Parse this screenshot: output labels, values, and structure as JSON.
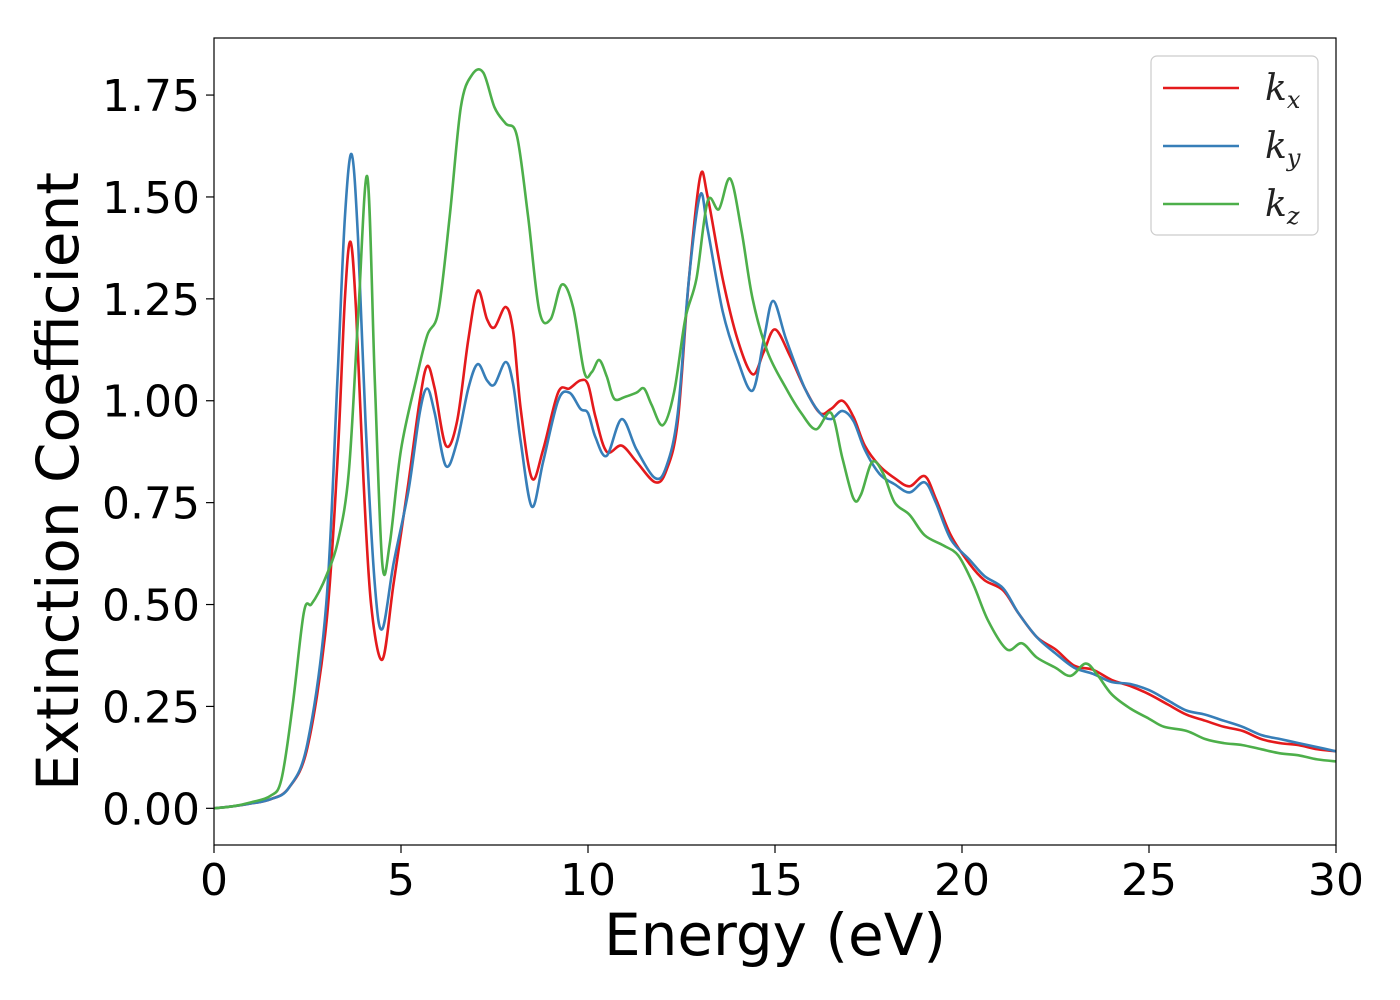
{
  "chart_data": {
    "type": "line",
    "xlabel": "Energy (eV)",
    "ylabel": "Extinction Coefficient",
    "xlim": [
      0,
      30
    ],
    "ylim": [
      -0.09,
      1.89
    ],
    "xticks": [
      0,
      5,
      10,
      15,
      20,
      25,
      30
    ],
    "xtick_labels": [
      "0",
      "5",
      "10",
      "15",
      "20",
      "25",
      "30"
    ],
    "yticks": [
      0.0,
      0.25,
      0.5,
      0.75,
      1.0,
      1.25,
      1.5,
      1.75
    ],
    "ytick_labels": [
      "0.00",
      "0.25",
      "0.50",
      "0.75",
      "1.00",
      "1.25",
      "1.50",
      "1.75"
    ],
    "grid": false,
    "legend_position": "top-right",
    "series": [
      {
        "name": "k_x",
        "legend_base": "k",
        "legend_sub": "x",
        "color": "#e41a1c",
        "points": [
          [
            0,
            0
          ],
          [
            0.5,
            0.005
          ],
          [
            1.0,
            0.012
          ],
          [
            1.5,
            0.022
          ],
          [
            2.0,
            0.05
          ],
          [
            2.5,
            0.15
          ],
          [
            3.0,
            0.45
          ],
          [
            3.3,
            0.85
          ],
          [
            3.5,
            1.25
          ],
          [
            3.65,
            1.39
          ],
          [
            3.8,
            1.22
          ],
          [
            4.0,
            0.8
          ],
          [
            4.2,
            0.5
          ],
          [
            4.5,
            0.365
          ],
          [
            4.8,
            0.55
          ],
          [
            5.2,
            0.8
          ],
          [
            5.5,
            1.0
          ],
          [
            5.7,
            1.085
          ],
          [
            5.9,
            1.03
          ],
          [
            6.2,
            0.89
          ],
          [
            6.5,
            0.95
          ],
          [
            6.8,
            1.15
          ],
          [
            7.05,
            1.27
          ],
          [
            7.3,
            1.2
          ],
          [
            7.5,
            1.18
          ],
          [
            7.8,
            1.23
          ],
          [
            8.0,
            1.17
          ],
          [
            8.2,
            0.98
          ],
          [
            8.5,
            0.81
          ],
          [
            8.8,
            0.88
          ],
          [
            9.2,
            1.02
          ],
          [
            9.5,
            1.03
          ],
          [
            9.8,
            1.05
          ],
          [
            10.0,
            1.04
          ],
          [
            10.2,
            0.96
          ],
          [
            10.5,
            0.875
          ],
          [
            10.9,
            0.89
          ],
          [
            11.3,
            0.85
          ],
          [
            11.8,
            0.8
          ],
          [
            12.1,
            0.83
          ],
          [
            12.4,
            0.95
          ],
          [
            12.7,
            1.3
          ],
          [
            13.0,
            1.55
          ],
          [
            13.2,
            1.5
          ],
          [
            13.6,
            1.3
          ],
          [
            14.0,
            1.15
          ],
          [
            14.4,
            1.065
          ],
          [
            14.7,
            1.12
          ],
          [
            15.0,
            1.175
          ],
          [
            15.4,
            1.11
          ],
          [
            15.8,
            1.03
          ],
          [
            16.2,
            0.97
          ],
          [
            16.5,
            0.98
          ],
          [
            16.8,
            1.0
          ],
          [
            17.1,
            0.96
          ],
          [
            17.4,
            0.89
          ],
          [
            17.8,
            0.84
          ],
          [
            18.2,
            0.81
          ],
          [
            18.6,
            0.79
          ],
          [
            19.0,
            0.815
          ],
          [
            19.3,
            0.76
          ],
          [
            19.7,
            0.67
          ],
          [
            20.2,
            0.6
          ],
          [
            20.6,
            0.56
          ],
          [
            21.1,
            0.535
          ],
          [
            21.5,
            0.48
          ],
          [
            22.0,
            0.42
          ],
          [
            22.5,
            0.39
          ],
          [
            23.0,
            0.35
          ],
          [
            23.5,
            0.34
          ],
          [
            24.0,
            0.315
          ],
          [
            24.5,
            0.3
          ],
          [
            25.0,
            0.28
          ],
          [
            25.5,
            0.255
          ],
          [
            26.0,
            0.23
          ],
          [
            26.5,
            0.215
          ],
          [
            27.0,
            0.2
          ],
          [
            27.5,
            0.19
          ],
          [
            28.0,
            0.17
          ],
          [
            28.5,
            0.16
          ],
          [
            29.0,
            0.155
          ],
          [
            29.5,
            0.145
          ],
          [
            30.0,
            0.14
          ]
        ]
      },
      {
        "name": "k_y",
        "legend_base": "k",
        "legend_sub": "y",
        "color": "#377eb8",
        "points": [
          [
            0,
            0
          ],
          [
            0.5,
            0.005
          ],
          [
            1.0,
            0.012
          ],
          [
            1.5,
            0.022
          ],
          [
            2.0,
            0.05
          ],
          [
            2.5,
            0.16
          ],
          [
            3.0,
            0.5
          ],
          [
            3.3,
            1.05
          ],
          [
            3.5,
            1.45
          ],
          [
            3.68,
            1.605
          ],
          [
            3.85,
            1.4
          ],
          [
            4.05,
            0.95
          ],
          [
            4.3,
            0.55
          ],
          [
            4.5,
            0.44
          ],
          [
            4.8,
            0.6
          ],
          [
            5.2,
            0.78
          ],
          [
            5.5,
            0.97
          ],
          [
            5.7,
            1.03
          ],
          [
            5.9,
            0.97
          ],
          [
            6.2,
            0.84
          ],
          [
            6.5,
            0.9
          ],
          [
            6.8,
            1.03
          ],
          [
            7.05,
            1.09
          ],
          [
            7.3,
            1.05
          ],
          [
            7.5,
            1.04
          ],
          [
            7.8,
            1.095
          ],
          [
            8.0,
            1.04
          ],
          [
            8.2,
            0.9
          ],
          [
            8.5,
            0.74
          ],
          [
            8.8,
            0.85
          ],
          [
            9.2,
            1.0
          ],
          [
            9.5,
            1.02
          ],
          [
            9.8,
            0.98
          ],
          [
            10.0,
            0.97
          ],
          [
            10.2,
            0.91
          ],
          [
            10.5,
            0.865
          ],
          [
            10.9,
            0.955
          ],
          [
            11.3,
            0.88
          ],
          [
            11.8,
            0.81
          ],
          [
            12.1,
            0.84
          ],
          [
            12.4,
            0.97
          ],
          [
            12.7,
            1.3
          ],
          [
            13.0,
            1.505
          ],
          [
            13.2,
            1.42
          ],
          [
            13.6,
            1.22
          ],
          [
            14.0,
            1.1
          ],
          [
            14.4,
            1.025
          ],
          [
            14.7,
            1.15
          ],
          [
            14.95,
            1.245
          ],
          [
            15.3,
            1.15
          ],
          [
            15.8,
            1.03
          ],
          [
            16.2,
            0.97
          ],
          [
            16.5,
            0.955
          ],
          [
            16.8,
            0.975
          ],
          [
            17.1,
            0.95
          ],
          [
            17.4,
            0.88
          ],
          [
            17.8,
            0.82
          ],
          [
            18.2,
            0.795
          ],
          [
            18.6,
            0.775
          ],
          [
            19.0,
            0.8
          ],
          [
            19.3,
            0.75
          ],
          [
            19.7,
            0.66
          ],
          [
            20.2,
            0.61
          ],
          [
            20.6,
            0.57
          ],
          [
            21.1,
            0.54
          ],
          [
            21.5,
            0.48
          ],
          [
            22.0,
            0.42
          ],
          [
            22.5,
            0.38
          ],
          [
            23.0,
            0.345
          ],
          [
            23.5,
            0.33
          ],
          [
            24.0,
            0.31
          ],
          [
            24.5,
            0.305
          ],
          [
            25.0,
            0.29
          ],
          [
            25.5,
            0.265
          ],
          [
            26.0,
            0.24
          ],
          [
            26.5,
            0.23
          ],
          [
            27.0,
            0.215
          ],
          [
            27.5,
            0.2
          ],
          [
            28.0,
            0.18
          ],
          [
            28.5,
            0.17
          ],
          [
            29.0,
            0.16
          ],
          [
            29.5,
            0.15
          ],
          [
            30.0,
            0.14
          ]
        ]
      },
      {
        "name": "k_z",
        "legend_base": "k",
        "legend_sub": "z",
        "color": "#4daf4a",
        "points": [
          [
            0,
            0
          ],
          [
            0.5,
            0.005
          ],
          [
            1.0,
            0.015
          ],
          [
            1.5,
            0.03
          ],
          [
            1.8,
            0.07
          ],
          [
            2.1,
            0.25
          ],
          [
            2.4,
            0.48
          ],
          [
            2.6,
            0.5
          ],
          [
            2.8,
            0.53
          ],
          [
            3.0,
            0.57
          ],
          [
            3.3,
            0.65
          ],
          [
            3.6,
            0.82
          ],
          [
            3.85,
            1.2
          ],
          [
            4.1,
            1.55
          ],
          [
            4.3,
            1.05
          ],
          [
            4.5,
            0.6
          ],
          [
            4.7,
            0.65
          ],
          [
            5.0,
            0.88
          ],
          [
            5.4,
            1.05
          ],
          [
            5.7,
            1.16
          ],
          [
            6.0,
            1.22
          ],
          [
            6.3,
            1.45
          ],
          [
            6.6,
            1.72
          ],
          [
            6.9,
            1.8
          ],
          [
            7.2,
            1.805
          ],
          [
            7.5,
            1.72
          ],
          [
            7.8,
            1.68
          ],
          [
            8.1,
            1.65
          ],
          [
            8.4,
            1.45
          ],
          [
            8.7,
            1.22
          ],
          [
            9.0,
            1.2
          ],
          [
            9.3,
            1.285
          ],
          [
            9.6,
            1.23
          ],
          [
            9.9,
            1.07
          ],
          [
            10.1,
            1.07
          ],
          [
            10.3,
            1.1
          ],
          [
            10.5,
            1.06
          ],
          [
            10.7,
            1.005
          ],
          [
            11.0,
            1.01
          ],
          [
            11.3,
            1.02
          ],
          [
            11.5,
            1.03
          ],
          [
            11.7,
            0.99
          ],
          [
            12.0,
            0.94
          ],
          [
            12.3,
            1.02
          ],
          [
            12.6,
            1.2
          ],
          [
            12.9,
            1.3
          ],
          [
            13.2,
            1.49
          ],
          [
            13.5,
            1.47
          ],
          [
            13.8,
            1.545
          ],
          [
            14.1,
            1.42
          ],
          [
            14.4,
            1.25
          ],
          [
            14.8,
            1.12
          ],
          [
            15.3,
            1.03
          ],
          [
            15.7,
            0.97
          ],
          [
            16.1,
            0.93
          ],
          [
            16.5,
            0.97
          ],
          [
            16.8,
            0.86
          ],
          [
            17.1,
            0.76
          ],
          [
            17.3,
            0.77
          ],
          [
            17.6,
            0.85
          ],
          [
            17.9,
            0.82
          ],
          [
            18.2,
            0.75
          ],
          [
            18.6,
            0.72
          ],
          [
            19.0,
            0.67
          ],
          [
            19.5,
            0.645
          ],
          [
            19.9,
            0.62
          ],
          [
            20.3,
            0.55
          ],
          [
            20.7,
            0.46
          ],
          [
            21.2,
            0.39
          ],
          [
            21.6,
            0.405
          ],
          [
            22.0,
            0.37
          ],
          [
            22.5,
            0.345
          ],
          [
            22.9,
            0.325
          ],
          [
            23.3,
            0.355
          ],
          [
            23.6,
            0.33
          ],
          [
            24.0,
            0.28
          ],
          [
            24.5,
            0.245
          ],
          [
            25.0,
            0.22
          ],
          [
            25.4,
            0.2
          ],
          [
            26.0,
            0.19
          ],
          [
            26.5,
            0.17
          ],
          [
            27.0,
            0.16
          ],
          [
            27.5,
            0.155
          ],
          [
            28.0,
            0.145
          ],
          [
            28.5,
            0.135
          ],
          [
            29.0,
            0.13
          ],
          [
            29.5,
            0.12
          ],
          [
            30.0,
            0.115
          ]
        ]
      }
    ]
  }
}
